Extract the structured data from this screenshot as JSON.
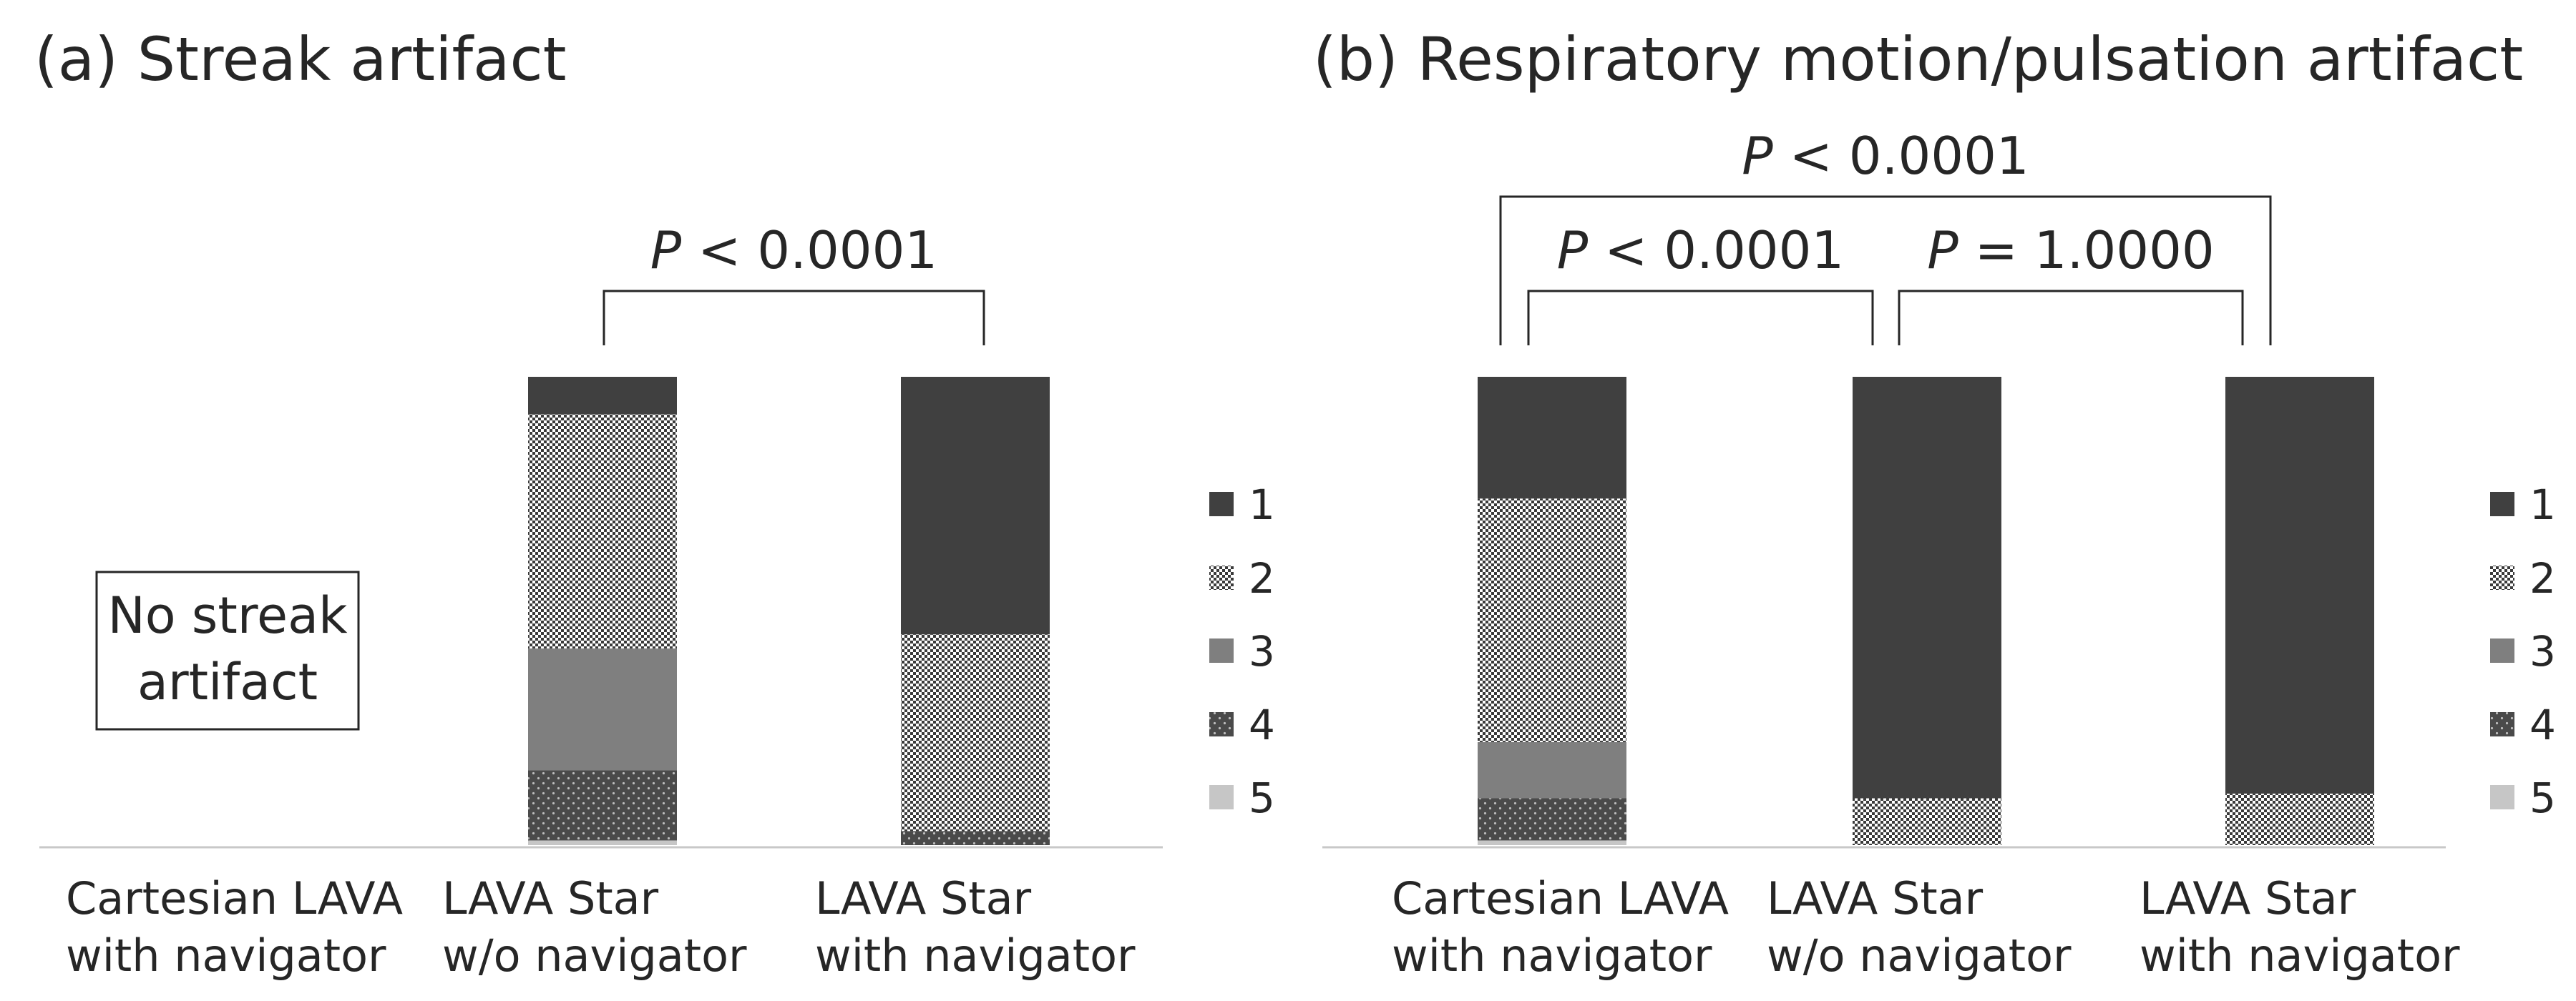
{
  "colors": {
    "1": "#404040",
    "2": "#3a3a3a",
    "3": "#7f7f7f",
    "4": "#4a4a4a",
    "5": "#c6c6c6",
    "axis": "#c8c8c8",
    "bracket": "#262626"
  },
  "chart_data": [
    {
      "type": "bar",
      "stacked": true,
      "title": "(a) Streak artifact",
      "categories": [
        [
          "Cartesian LAVA",
          "with navigator"
        ],
        [
          "LAVA Star",
          "w/o navigator"
        ],
        [
          "LAVA Star",
          "with navigator"
        ]
      ],
      "series": [
        {
          "name": "1",
          "values": [
            0,
            8,
            55
          ]
        },
        {
          "name": "2",
          "values": [
            0,
            50,
            42
          ]
        },
        {
          "name": "3",
          "values": [
            0,
            26,
            0
          ]
        },
        {
          "name": "4",
          "values": [
            0,
            15,
            3
          ]
        },
        {
          "name": "5",
          "values": [
            0,
            1,
            0
          ]
        }
      ],
      "ylim": [
        0,
        100
      ],
      "annotation": "No streak artifact",
      "comparisons": [
        {
          "from": 1,
          "to": 2,
          "p_prefix": "P",
          "p_text": " < 0.0001"
        }
      ]
    },
    {
      "type": "bar",
      "stacked": true,
      "title": "(b) Respiratory motion/pulsation artifact",
      "categories": [
        [
          "Cartesian LAVA",
          "with navigator"
        ],
        [
          "LAVA Star",
          "w/o navigator"
        ],
        [
          "LAVA Star",
          "with navigator"
        ]
      ],
      "series": [
        {
          "name": "1",
          "values": [
            26,
            90,
            89
          ]
        },
        {
          "name": "2",
          "values": [
            52,
            10,
            11
          ]
        },
        {
          "name": "3",
          "values": [
            12,
            0,
            0
          ]
        },
        {
          "name": "4",
          "values": [
            9,
            0,
            0
          ]
        },
        {
          "name": "5",
          "values": [
            1,
            0,
            0
          ]
        }
      ],
      "ylim": [
        0,
        100
      ],
      "comparisons": [
        {
          "from": 0,
          "to": 1,
          "p_prefix": "P",
          "p_text": " < 0.0001"
        },
        {
          "from": 1,
          "to": 2,
          "p_prefix": "P",
          "p_text": " = 1.0000"
        },
        {
          "from": 0,
          "to": 2,
          "p_prefix": "P",
          "p_text": " < 0.0001"
        }
      ]
    }
  ]
}
